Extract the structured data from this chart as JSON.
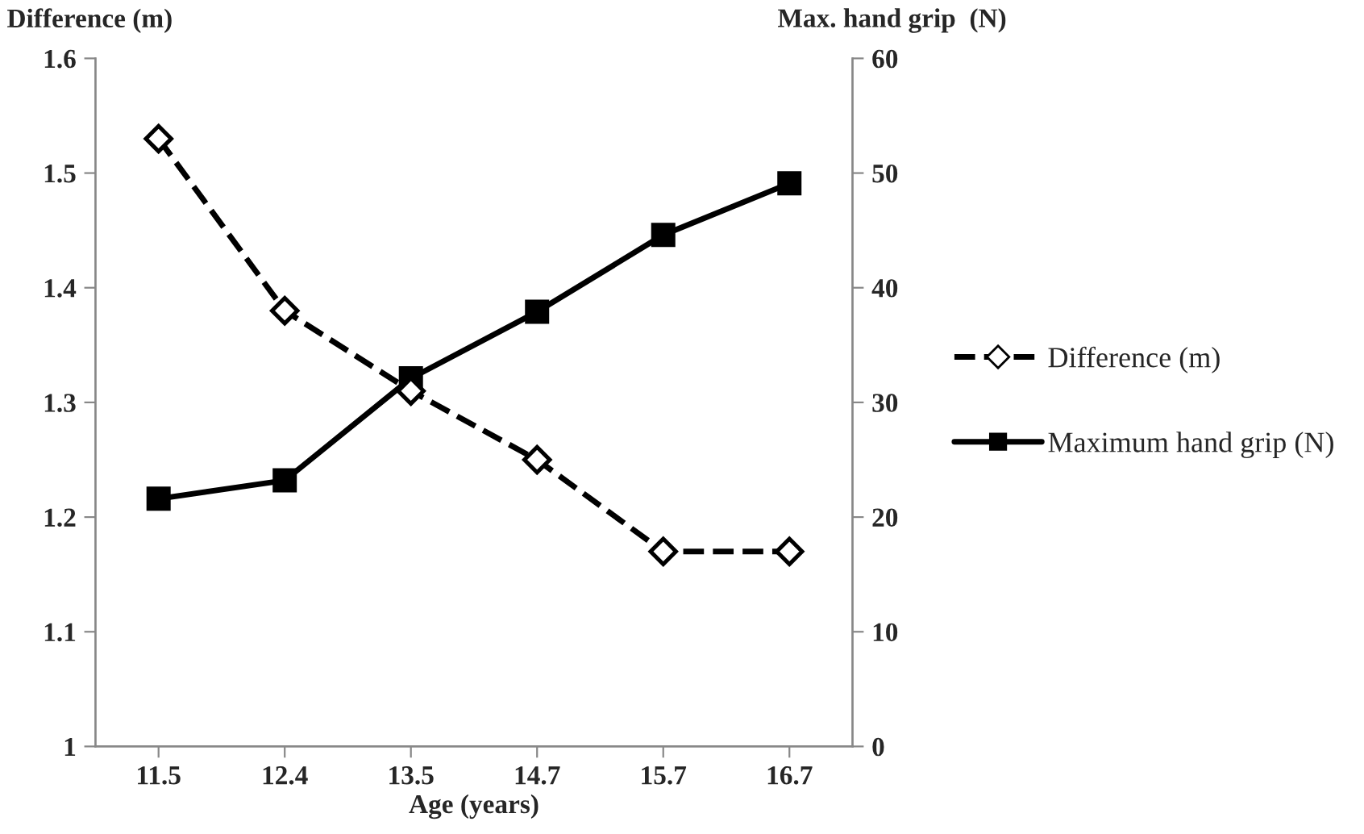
{
  "chart_data": {
    "type": "line",
    "xlabel": "Age (years)",
    "ylabel": "Difference (m)",
    "y2label": "Max. hand grip  (N)",
    "categories": [
      "11.5",
      "12.4",
      "13.5",
      "14.7",
      "15.7",
      "16.7"
    ],
    "series": [
      {
        "name": "Difference (m)",
        "color": "#000000",
        "values": [
          1.53,
          1.38,
          1.31,
          1.25,
          1.17,
          1.17
        ],
        "marker": "diamond",
        "line_style": "dashed"
      },
      {
        "name": "Maximum hand grip (N)",
        "color": "#000000",
        "values": [
          21.6,
          23.2,
          32.1,
          37.9,
          44.6,
          49.1
        ],
        "marker": "square",
        "line_style": "solid",
        "axis": "y2"
      }
    ],
    "ylim": [
      1,
      1.6
    ],
    "yticks": [
      1,
      1.1,
      1.2,
      1.3,
      1.4,
      1.5,
      1.6
    ],
    "y2lim": [
      0,
      60
    ],
    "y2ticks": [
      0,
      10,
      20,
      30,
      40,
      50,
      60
    ],
    "grid": false,
    "legend": "right"
  }
}
